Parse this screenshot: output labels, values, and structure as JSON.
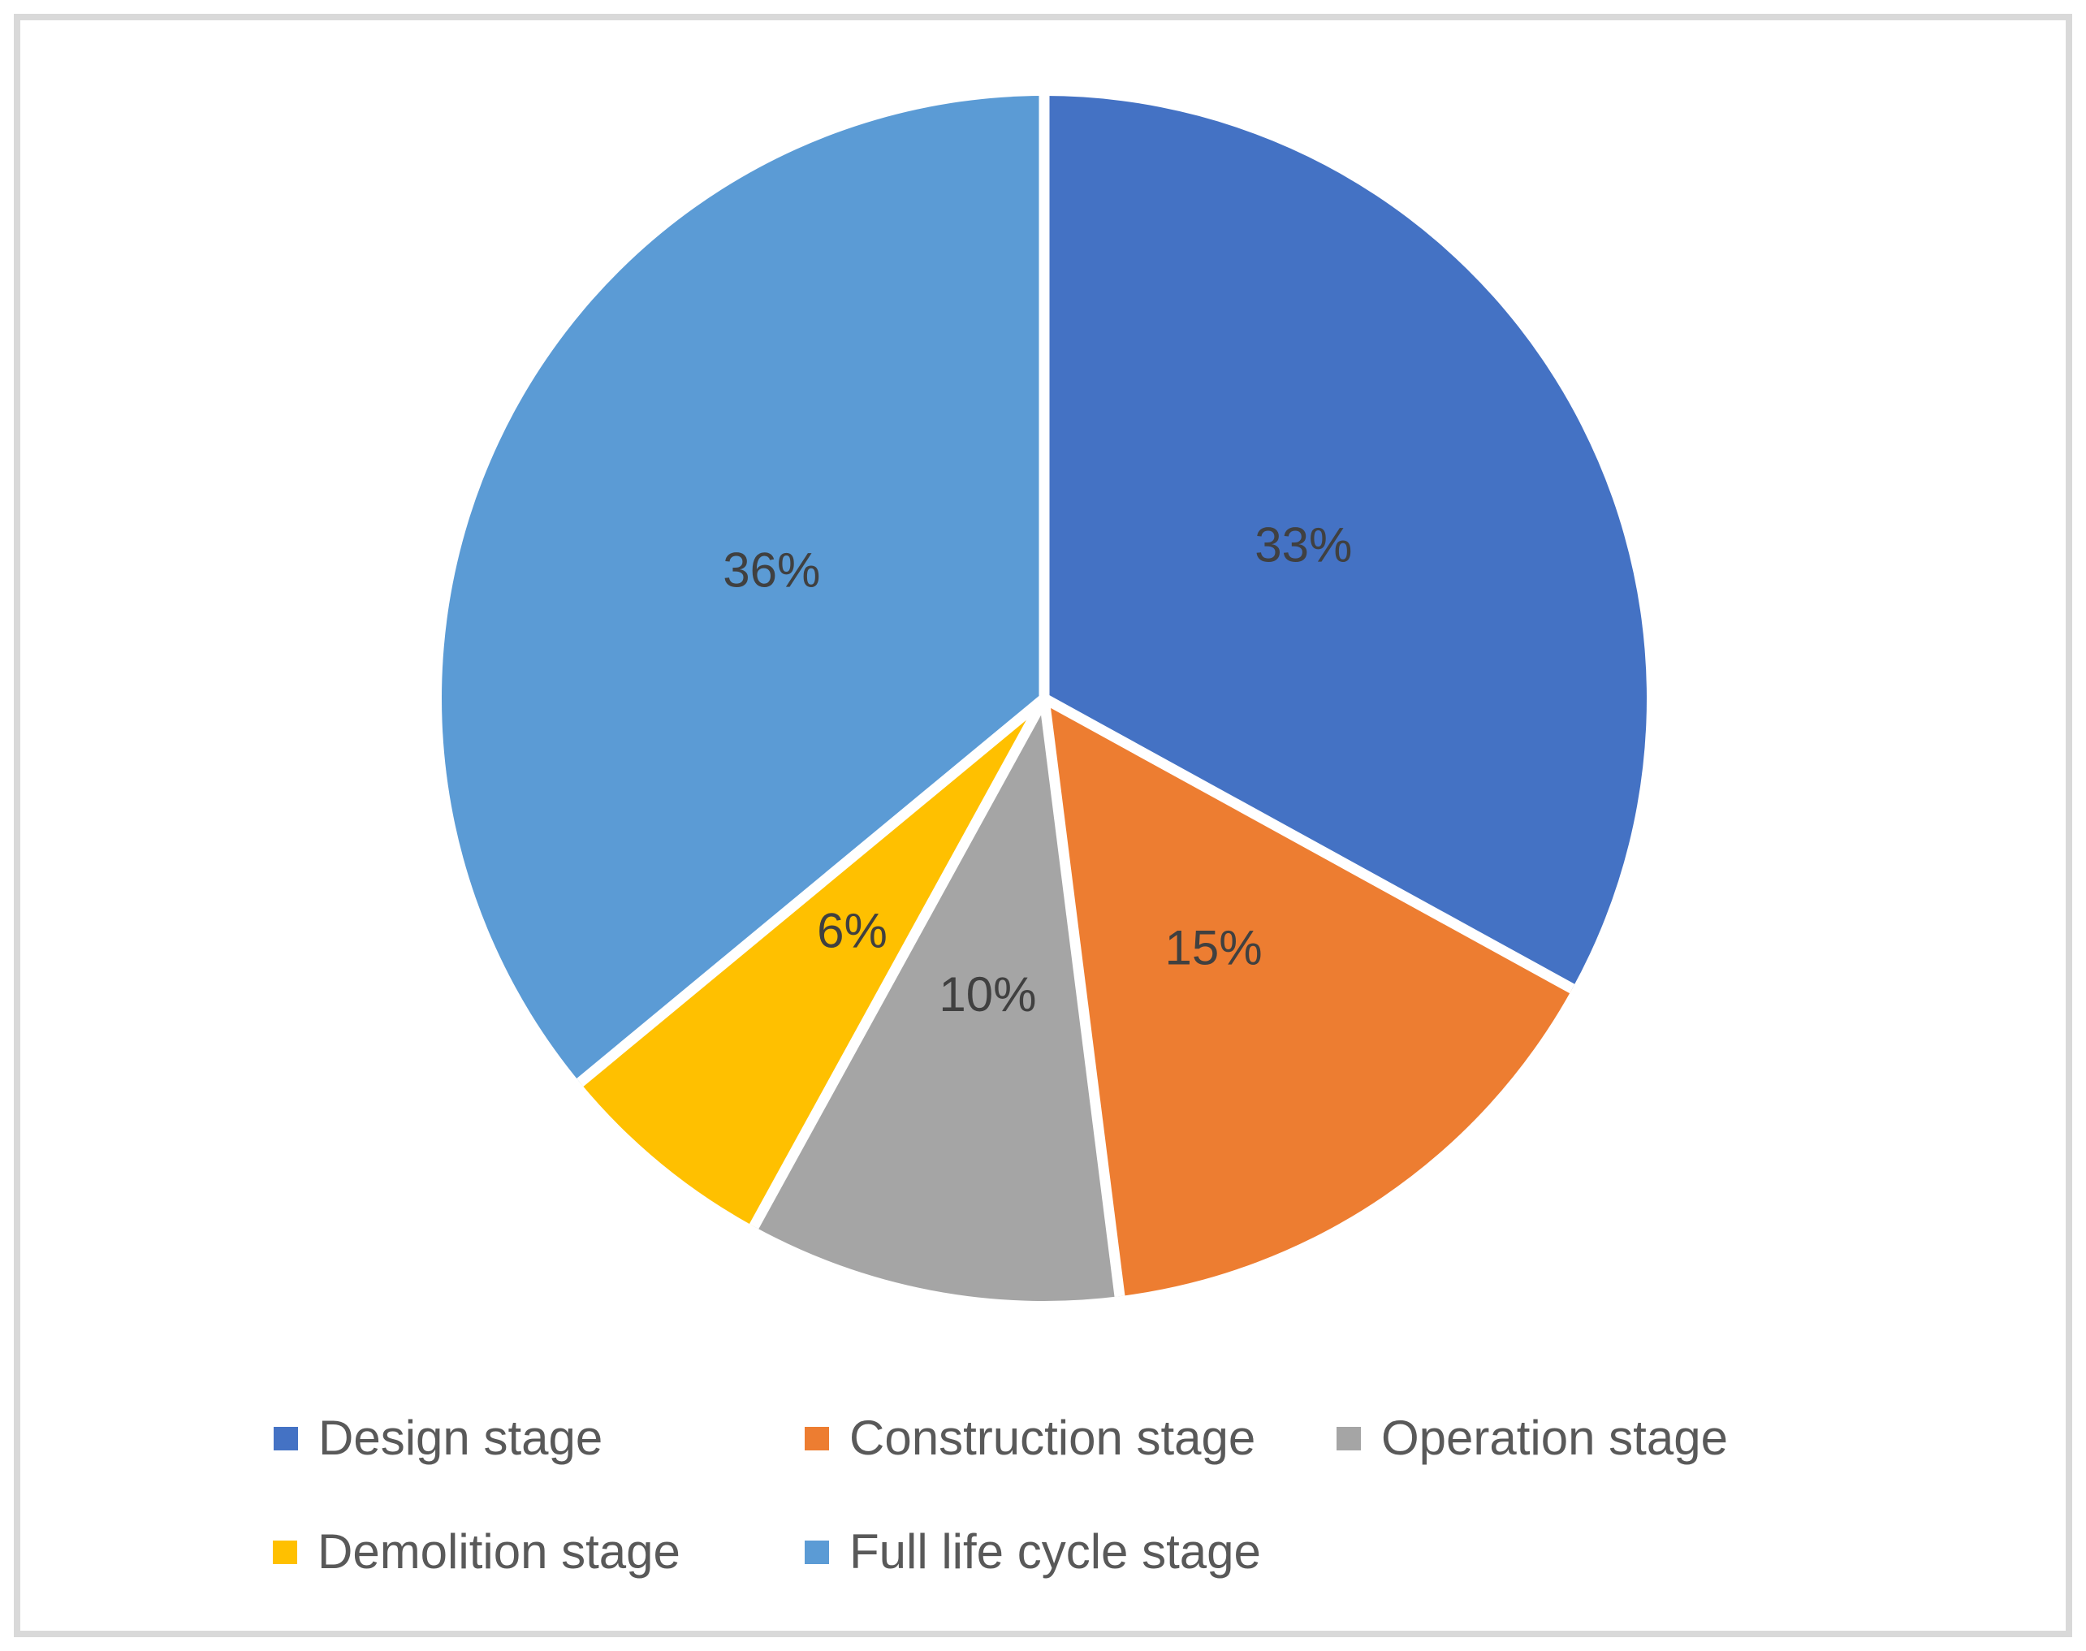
{
  "chart_data": {
    "type": "pie",
    "title": "",
    "categories": [
      "Design stage",
      "Construction stage",
      "Operation stage",
      "Demolition stage",
      "Full life cycle stage"
    ],
    "values": [
      33,
      15,
      10,
      6,
      36
    ],
    "data_labels": [
      "33%",
      "15%",
      "10%",
      "6%",
      "36%"
    ],
    "colors": [
      "#4472C4",
      "#ED7D31",
      "#A5A5A5",
      "#FFC000",
      "#5B9BD5"
    ],
    "start_angle_deg": 0,
    "direction": "clockwise",
    "label_position": "inside",
    "legend_position": "bottom",
    "legend_rows": 2
  },
  "styles": {
    "data_label_color": "#404040",
    "legend_text_color": "#595959",
    "separator_color": "#FFFFFF",
    "frame_border_color": "#D9D9D9",
    "background_color": "#FFFFFF"
  }
}
